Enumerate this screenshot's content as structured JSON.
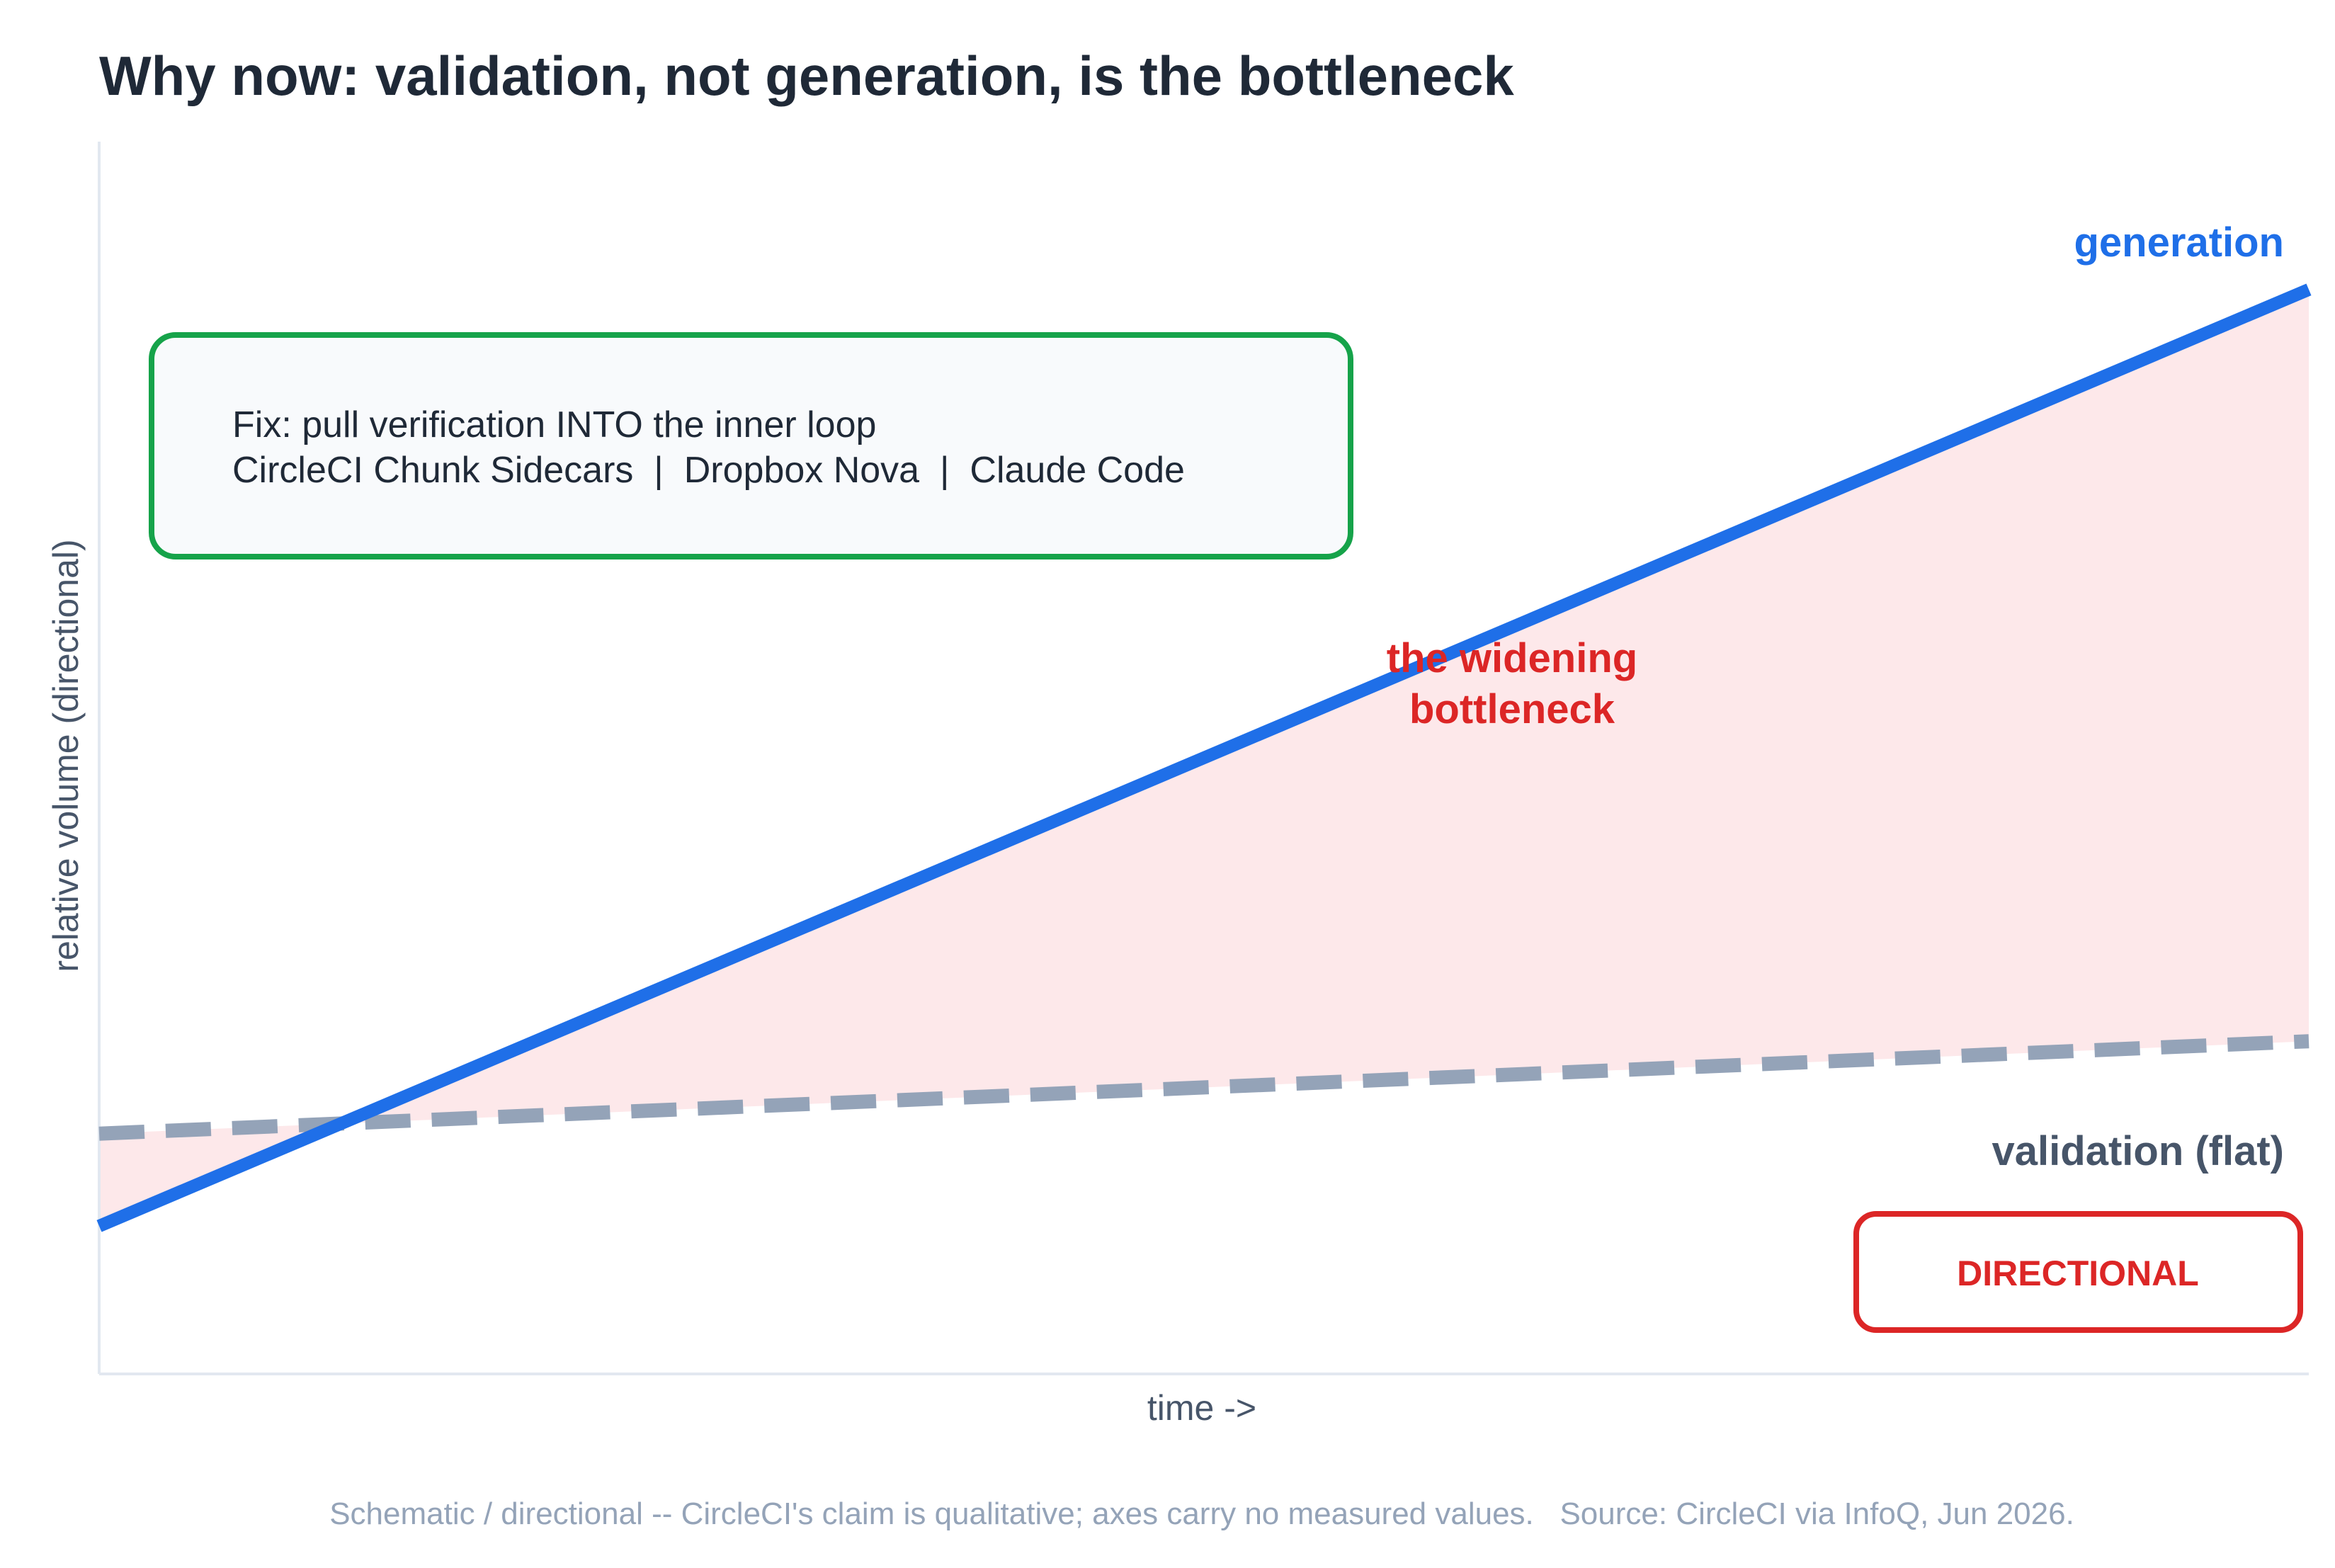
{
  "colors": {
    "generation": "#1f6fe8",
    "validation": "#94a3b8",
    "gap_fill": "#fde8ea",
    "gap_label": "#dc2626",
    "fix_border": "#16a34a",
    "fix_bg": "#f8fafc",
    "badge": "#dc2626",
    "title": "#1f2937",
    "axis": "#e2e8f0",
    "footnote": "#94a3b8"
  },
  "chart_data": {
    "type": "line",
    "title": "Why now: validation, not generation, is the bottleneck",
    "xlabel": "time ->",
    "ylabel": "relative volume (directional)",
    "xlim": [
      0,
      1
    ],
    "ylim": [
      0,
      1
    ],
    "grid": false,
    "series": [
      {
        "name": "generation",
        "style": "solid",
        "x": [
          0,
          1
        ],
        "y": [
          0.12,
          0.88
        ]
      },
      {
        "name": "validation (flat)",
        "style": "dashed",
        "x": [
          0,
          1
        ],
        "y": [
          0.195,
          0.27
        ]
      }
    ],
    "shaded_region": {
      "between": [
        "generation",
        "validation (flat)"
      ],
      "label": [
        "the widening",
        "bottleneck"
      ]
    },
    "callout": {
      "lines": [
        "Fix: pull verification INTO the inner loop",
        "CircleCI Chunk Sidecars  |  Dropbox Nova  |  Claude Code"
      ]
    },
    "badge": "DIRECTIONAL",
    "footnote": "Schematic / directional -- CircleCI's claim is qualitative; axes carry no measured values.   Source: CircleCI via InfoQ, Jun 2026."
  }
}
